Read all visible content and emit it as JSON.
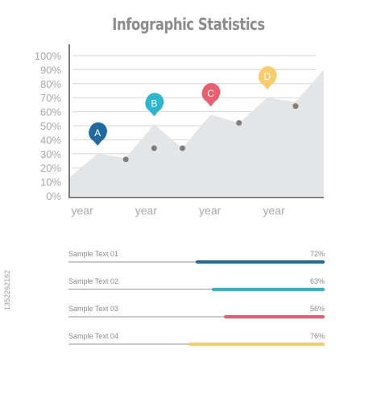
{
  "header": {
    "title": "Infographic Statistics"
  },
  "chart_data": {
    "type": "area",
    "y_tick_labels": [
      "0%",
      "10%",
      "20%",
      "30%",
      "40%",
      "50%",
      "60%",
      "70%",
      "80%",
      "90%",
      "100%"
    ],
    "ylim": [
      0,
      100
    ],
    "x_tick_labels": [
      "year",
      "year",
      "year",
      "year"
    ],
    "grid": true,
    "area_values": [
      13,
      30,
      27,
      51,
      34,
      58,
      52,
      70,
      67,
      90
    ],
    "points": [
      26,
      34,
      34,
      52,
      64
    ],
    "markers": [
      {
        "label": "A",
        "value": 30,
        "color": "#1f6b9f"
      },
      {
        "label": "B",
        "value": 51,
        "color": "#2ab6cc"
      },
      {
        "label": "C",
        "value": 58,
        "color": "#ec5e6e"
      },
      {
        "label": "D",
        "value": 70,
        "color": "#f7cd6c"
      }
    ]
  },
  "bars": [
    {
      "label": "Sample Text 01",
      "value": 72,
      "value_text": "72%",
      "color": "#1f6b9f"
    },
    {
      "label": "Sample Text 02",
      "value": 63,
      "value_text": "63%",
      "color": "#2ab6cc"
    },
    {
      "label": "Sample Text 03",
      "value": 56,
      "value_text": "56%",
      "color": "#ec5e6e"
    },
    {
      "label": "Sample Text 04",
      "value": 76,
      "value_text": "76%",
      "color": "#f7cd6c"
    }
  ],
  "side_id": "1352262162"
}
